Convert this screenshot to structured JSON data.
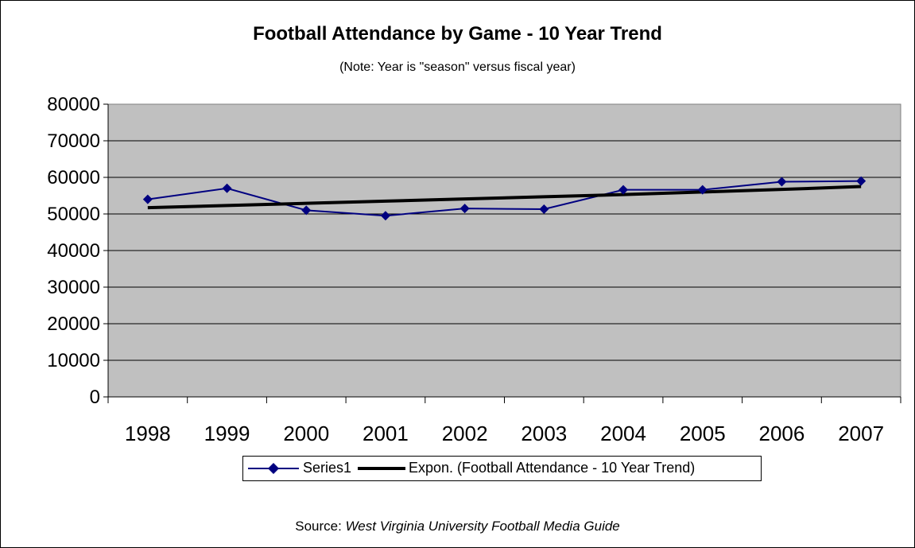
{
  "chart_data": {
    "type": "line",
    "title": "Football Attendance by Game - 10 Year Trend",
    "subtitle": "(Note: Year is \"season\" versus fiscal year)",
    "categories": [
      "1998",
      "1999",
      "2000",
      "2001",
      "2002",
      "2003",
      "2004",
      "2005",
      "2006",
      "2007"
    ],
    "series": [
      {
        "name": "Series1",
        "values": [
          54000,
          57000,
          51000,
          49500,
          51500,
          51300,
          56600,
          56600,
          58800,
          59000
        ],
        "color": "#000080",
        "marker": "diamond"
      },
      {
        "name": "Expon. (Football Attendance - 10 Year Trend)",
        "values": [
          51700,
          52300,
          52900,
          53500,
          54100,
          54700,
          55300,
          56000,
          56700,
          57500
        ],
        "color": "#000000",
        "trendline": "exponential"
      }
    ],
    "yticks": [
      "0",
      "10000",
      "20000",
      "30000",
      "40000",
      "50000",
      "60000",
      "70000",
      "80000"
    ],
    "ylim": [
      0,
      80000
    ],
    "grid": true,
    "plot_background": "#C0C0C0",
    "legend_position": "bottom"
  },
  "legend": {
    "series1_label": "Series1",
    "trend_label": "Expon. (Football Attendance - 10 Year Trend)"
  },
  "source": {
    "prefix": "Source:",
    "name": "West Virginia University Football Media Guide"
  }
}
